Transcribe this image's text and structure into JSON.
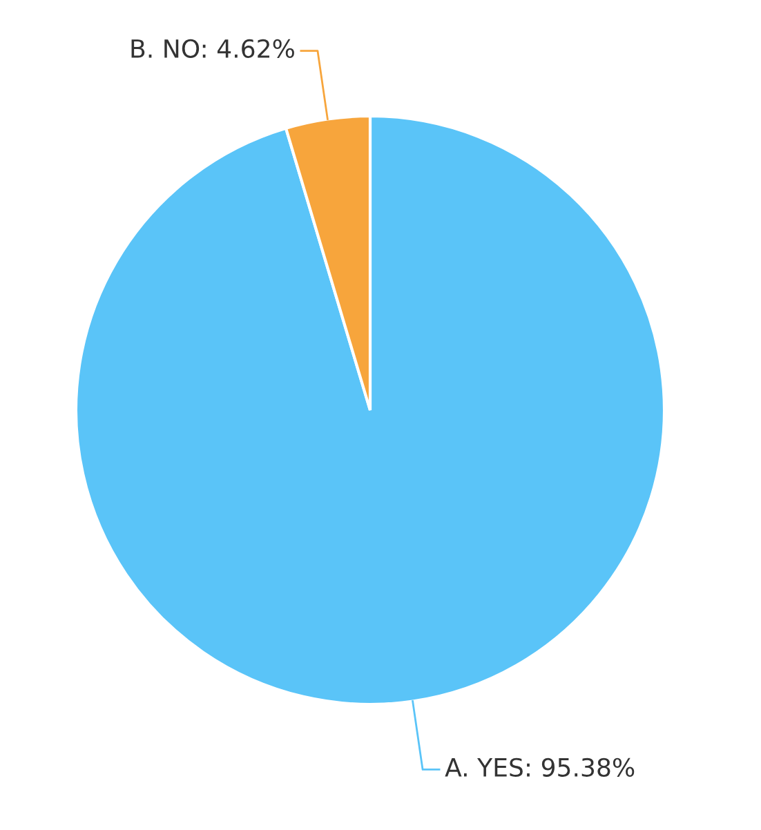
{
  "chart_data": {
    "type": "pie",
    "categories": [
      "A. YES",
      "B. NO"
    ],
    "values": [
      95.38,
      4.62
    ],
    "value_labels": [
      "95.38%",
      "4.62%"
    ],
    "colors": [
      "#5ac4f8",
      "#f7a53c"
    ],
    "legend": false
  }
}
